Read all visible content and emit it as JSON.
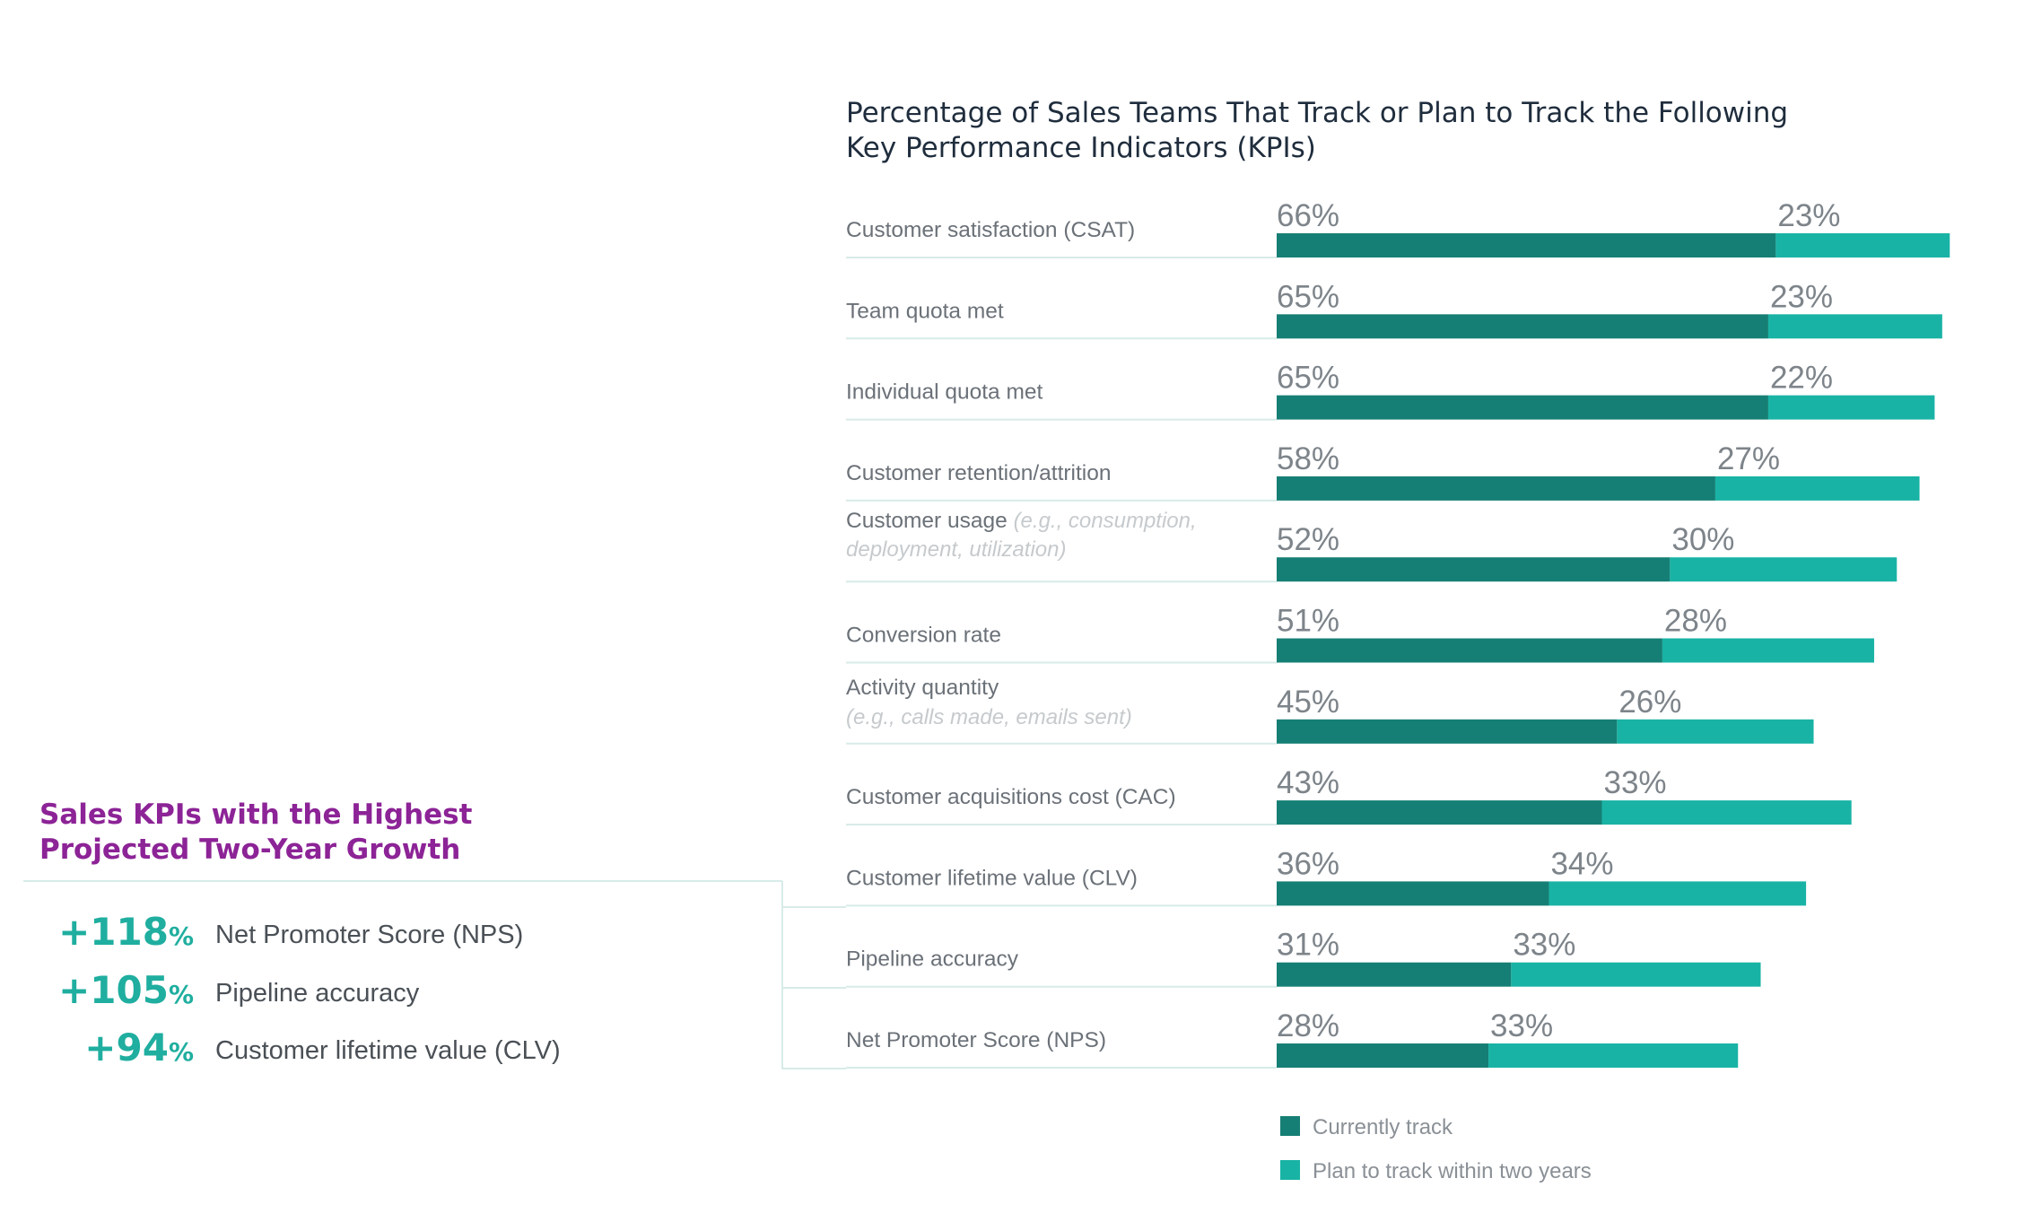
{
  "colors": {
    "current": "#167f75",
    "plan": "#19b3a5",
    "accent_purple": "#8c2396",
    "accent_teal": "#1fae9f"
  },
  "chart_data": {
    "type": "bar",
    "orientation": "horizontal",
    "stacked": true,
    "title_lines": [
      "Percentage of Sales Teams That Track or Plan to Track the Following",
      "Key Performance Indicators (KPIs)"
    ],
    "categories": [
      {
        "label": "Customer satisfaction (CSAT)",
        "sub": ""
      },
      {
        "label": "Team quota met",
        "sub": ""
      },
      {
        "label": "Individual quota met",
        "sub": ""
      },
      {
        "label": "Customer retention/attrition",
        "sub": ""
      },
      {
        "label": "Customer usage",
        "sub": "(e.g., consumption,",
        "sub2": "deployment, utilization)"
      },
      {
        "label": "Conversion rate",
        "sub": ""
      },
      {
        "label": "Activity quantity",
        "sub2": "(e.g., calls made, emails sent)"
      },
      {
        "label": "Customer acquisitions cost (CAC)",
        "sub": ""
      },
      {
        "label": "Customer lifetime value (CLV)",
        "sub": ""
      },
      {
        "label": "Pipeline accuracy",
        "sub": ""
      },
      {
        "label": "Net Promoter Score (NPS)",
        "sub": ""
      }
    ],
    "series": [
      {
        "name": "Currently track",
        "values": [
          66,
          65,
          65,
          58,
          52,
          51,
          45,
          43,
          36,
          31,
          28
        ],
        "value_labels": [
          "66%",
          "65%",
          "65%",
          "58%",
          "52%",
          "51%",
          "45%",
          "43%",
          "36%",
          "31%",
          "28%"
        ]
      },
      {
        "name": "Plan to track within two years",
        "values": [
          23,
          23,
          22,
          27,
          30,
          28,
          26,
          33,
          34,
          33,
          33
        ],
        "value_labels": [
          "23%",
          "23%",
          "22%",
          "27%",
          "30%",
          "28%",
          "26%",
          "33%",
          "34%",
          "33%",
          "33%"
        ]
      }
    ],
    "xlim": [
      0,
      100
    ],
    "legend": "bottom"
  },
  "growth": {
    "title_lines": [
      "Sales KPIs with the Highest",
      "Projected Two-Year Growth"
    ],
    "items": [
      {
        "value": "+118",
        "pct": "%",
        "label": "Net Promoter Score (NPS)"
      },
      {
        "value": "+105",
        "pct": "%",
        "label": "Pipeline accuracy"
      },
      {
        "value": "+94",
        "pct": "%",
        "label": "Customer lifetime value (CLV)"
      }
    ]
  }
}
